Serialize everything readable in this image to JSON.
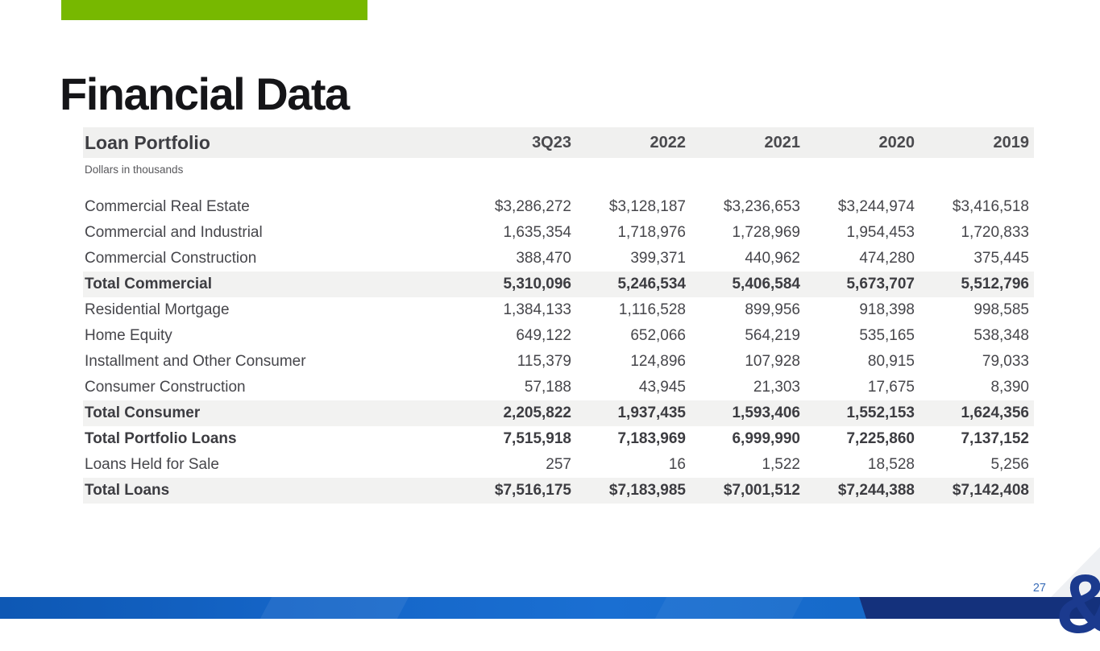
{
  "slide": {
    "title": "Financial Data",
    "page_number": "27",
    "logo_glyph": "&"
  },
  "table": {
    "title": "Loan Portfolio",
    "subtitle": "Dollars in thousands",
    "columns": [
      "3Q23",
      "2022",
      "2021",
      "2020",
      "2019"
    ],
    "rows": [
      {
        "label": "Commercial Real Estate",
        "values": [
          "$3,286,272",
          "$3,128,187",
          "$3,236,653",
          "$3,244,974",
          "$3,416,518"
        ],
        "style": "normal"
      },
      {
        "label": "Commercial and Industrial",
        "values": [
          "1,635,354",
          "1,718,976",
          "1,728,969",
          "1,954,453",
          "1,720,833"
        ],
        "style": "normal"
      },
      {
        "label": "Commercial Construction",
        "values": [
          "388,470",
          "399,371",
          "440,962",
          "474,280",
          "375,445"
        ],
        "style": "normal"
      },
      {
        "label": "Total Commercial",
        "values": [
          "5,310,096",
          "5,246,534",
          "5,406,584",
          "5,673,707",
          "5,512,796"
        ],
        "style": "total-shaded"
      },
      {
        "label": "Residential Mortgage",
        "values": [
          "1,384,133",
          "1,116,528",
          "899,956",
          "918,398",
          "998,585"
        ],
        "style": "normal"
      },
      {
        "label": "Home Equity",
        "values": [
          "649,122",
          "652,066",
          "564,219",
          "535,165",
          "538,348"
        ],
        "style": "normal"
      },
      {
        "label": "Installment and Other Consumer",
        "values": [
          "115,379",
          "124,896",
          "107,928",
          "80,915",
          "79,033"
        ],
        "style": "normal"
      },
      {
        "label": "Consumer Construction",
        "values": [
          "57,188",
          "43,945",
          "21,303",
          "17,675",
          "8,390"
        ],
        "style": "normal"
      },
      {
        "label": "Total Consumer",
        "values": [
          "2,205,822",
          "1,937,435",
          "1,593,406",
          "1,552,153",
          "1,624,356"
        ],
        "style": "total-shaded"
      },
      {
        "label": "Total Portfolio Loans",
        "values": [
          "7,515,918",
          "7,183,969",
          "6,999,990",
          "7,225,860",
          "7,137,152"
        ],
        "style": "total"
      },
      {
        "label": "Loans Held for Sale",
        "values": [
          "257",
          "16",
          "1,522",
          "18,528",
          "5,256"
        ],
        "style": "normal"
      },
      {
        "label": "Total Loans",
        "values": [
          "$7,516,175",
          "$7,183,985",
          "$7,001,512",
          "$7,244,388",
          "$7,142,408"
        ],
        "style": "total-shaded"
      }
    ]
  },
  "colors": {
    "accent_green": "#77b800",
    "bar_blue_left": "#0e58b4",
    "bar_blue_mid": "#1a6fd2",
    "bar_navy": "#14317c",
    "logo_navy": "#1b3a8e",
    "page_number_blue": "#3a6db8",
    "row_shade": "#f2f2f1",
    "header_band": "#f0f0ef"
  }
}
